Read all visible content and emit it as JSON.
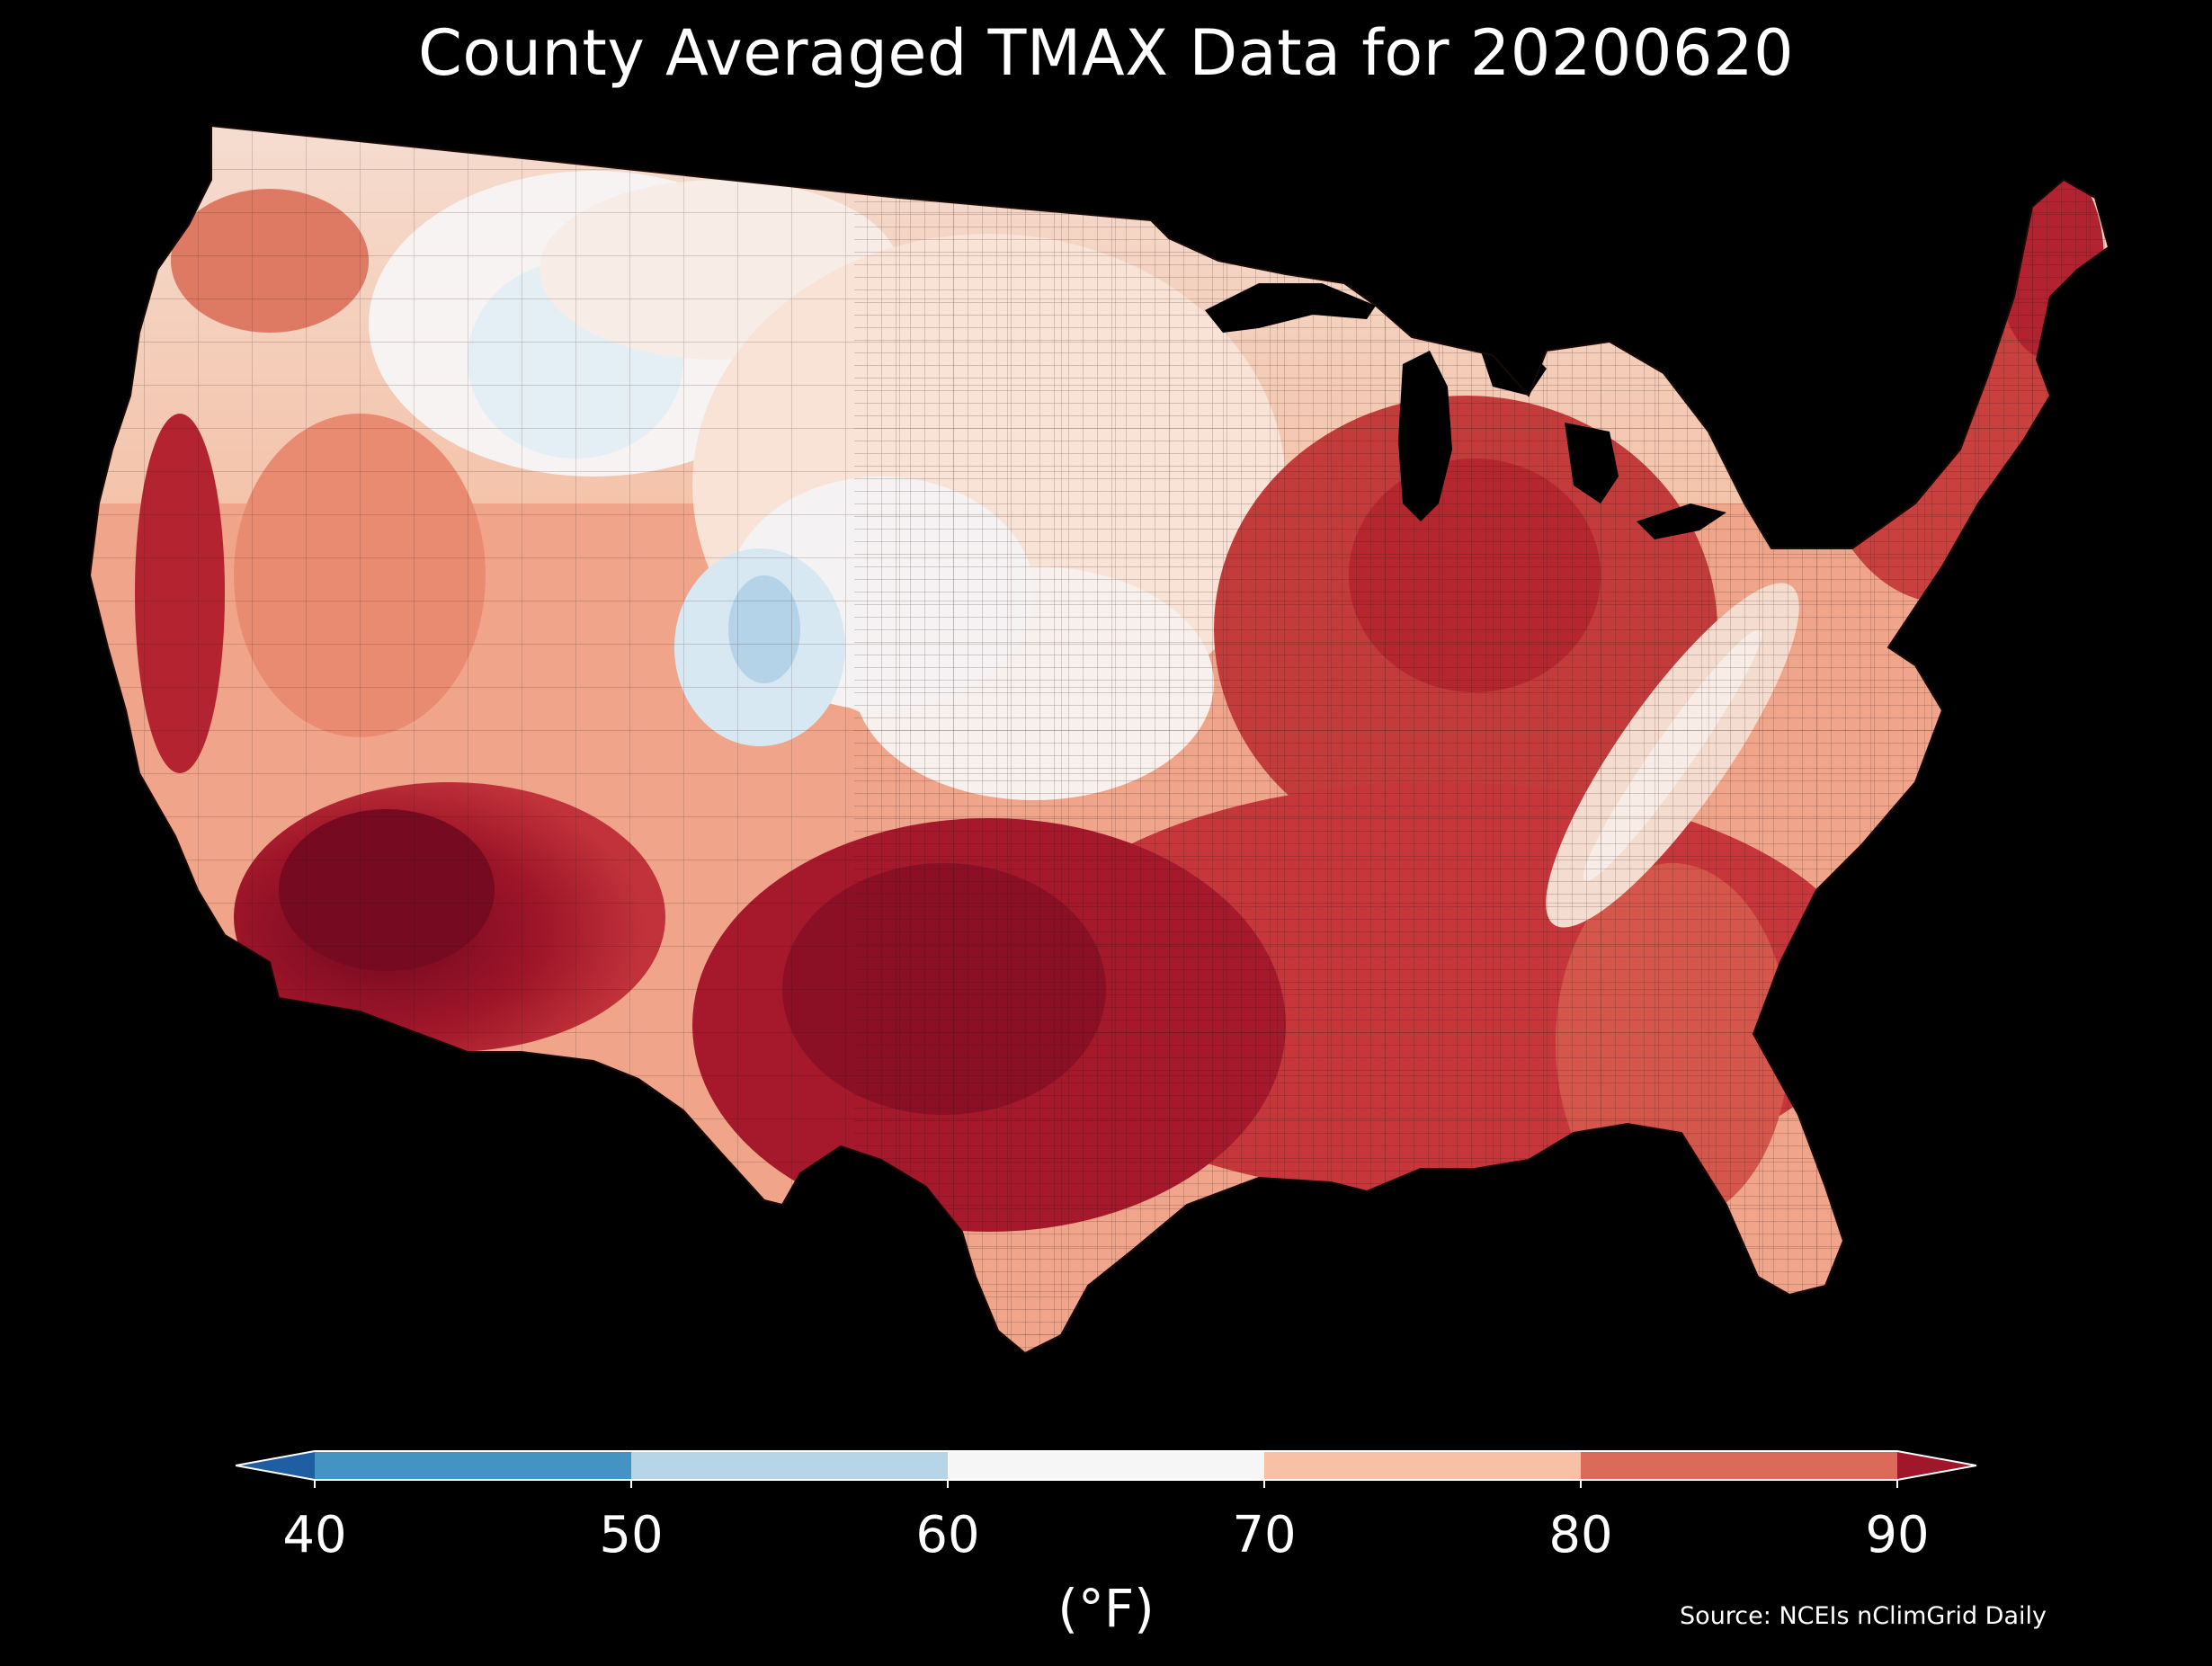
{
  "title": "County Averaged TMAX Data for 20200620",
  "colorbar": {
    "label": "(°F)",
    "ticks": [
      "40",
      "50",
      "60",
      "70",
      "80",
      "90"
    ],
    "bins": [
      {
        "range": [
          40,
          50
        ],
        "color": "#4393c3"
      },
      {
        "range": [
          50,
          60
        ],
        "color": "#b6d6e8"
      },
      {
        "range": [
          60,
          70
        ],
        "color": "#f6f6f6"
      },
      {
        "range": [
          70,
          80
        ],
        "color": "#f8c0a5"
      },
      {
        "range": [
          80,
          90
        ],
        "color": "#dc6a58"
      }
    ],
    "under_color": "#1e5ea3",
    "over_color": "#a0162a",
    "extend": "both"
  },
  "source": "Source: NCEIs nClimGrid Daily",
  "colors": {
    "background": "#000000",
    "text": "#ffffff",
    "county_border": "#3a1a14",
    "hot": "#7a0a1f",
    "warm": "#b8242e",
    "mild": "#f0a58a",
    "cool": "#f7efe9",
    "cold": "#d5e6f1"
  }
}
